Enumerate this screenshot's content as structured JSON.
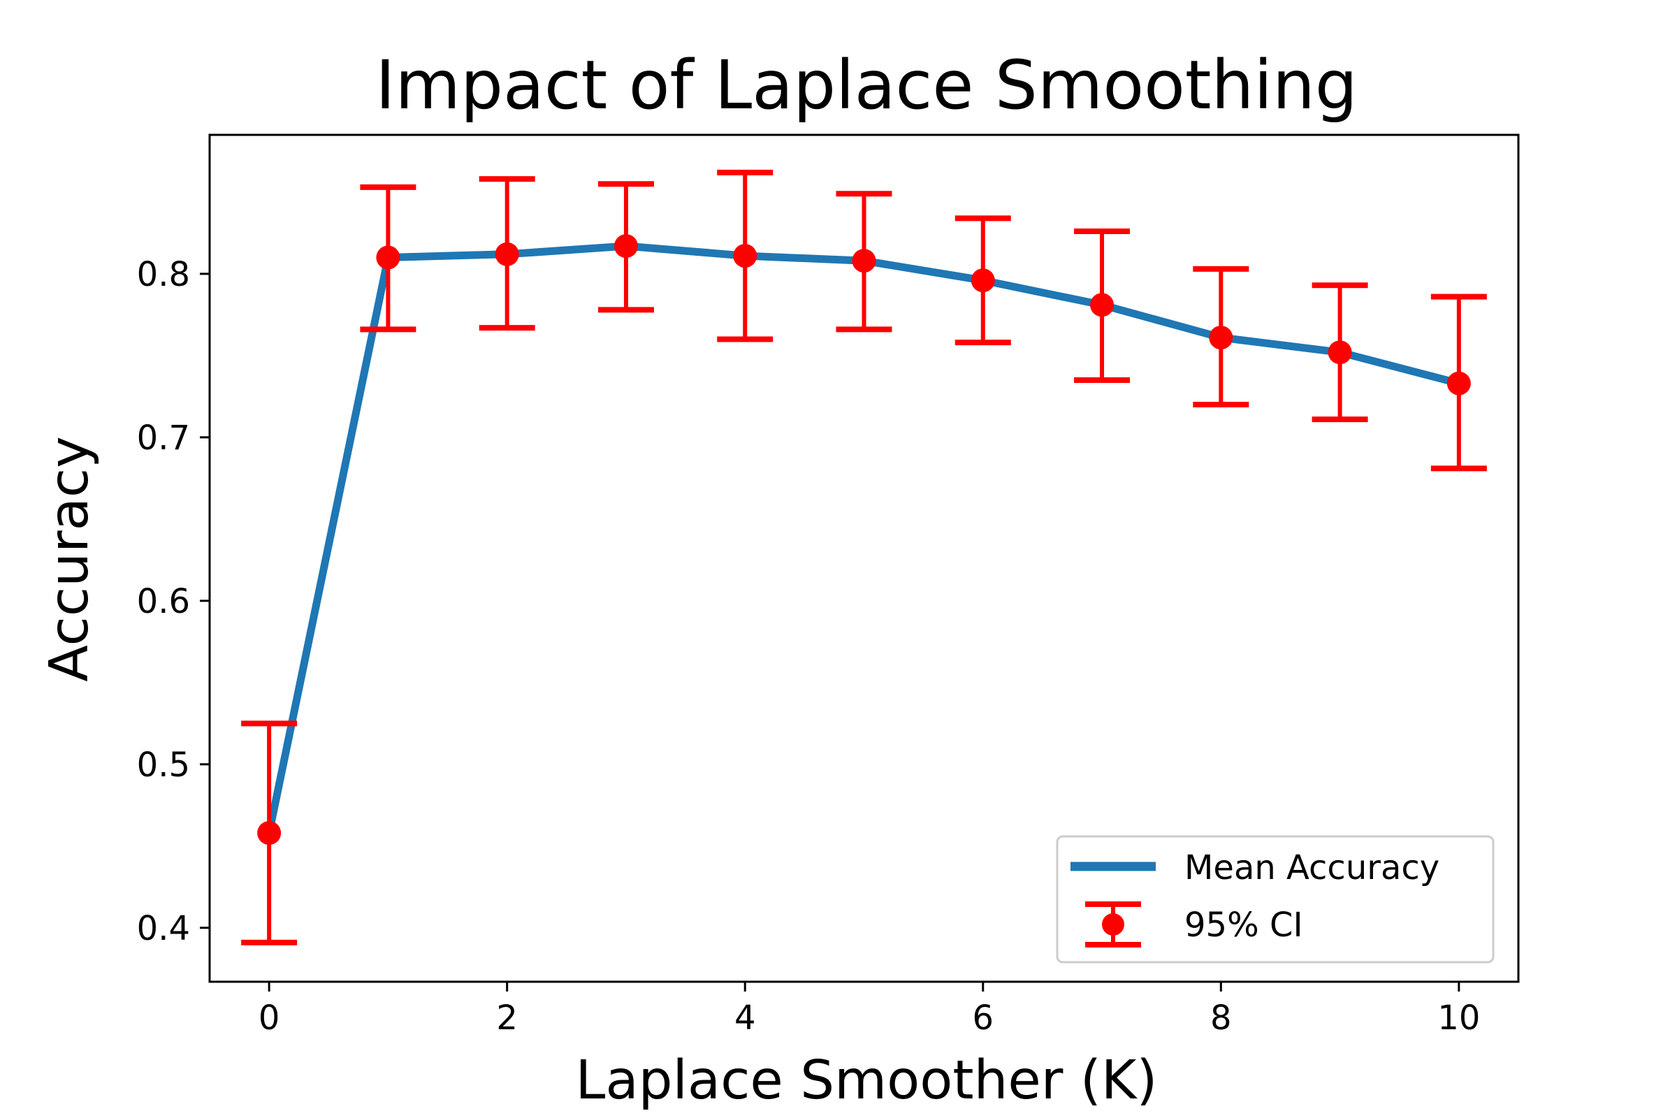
{
  "chart_data": {
    "type": "line",
    "title": "Impact of Laplace Smoothing",
    "xlabel": "Laplace Smoother (K)",
    "ylabel": "Accuracy",
    "xlim": [
      -0.5,
      10.5
    ],
    "ylim": [
      0.367,
      0.885
    ],
    "xticks": [
      0,
      2,
      4,
      6,
      8,
      10
    ],
    "yticks": [
      0.4,
      0.5,
      0.6,
      0.7,
      0.8
    ],
    "ytick_labels": [
      "0.4",
      "0.5",
      "0.6",
      "0.7",
      "0.8"
    ],
    "x": [
      0,
      1,
      2,
      3,
      4,
      5,
      6,
      7,
      8,
      9,
      10
    ],
    "series": [
      {
        "name": "Mean Accuracy",
        "kind": "line",
        "color": "#1f77b4",
        "values": [
          0.458,
          0.81,
          0.812,
          0.817,
          0.811,
          0.808,
          0.796,
          0.781,
          0.761,
          0.752,
          0.733
        ]
      },
      {
        "name": "95% CI",
        "kind": "errorbar",
        "color": "#ff0000",
        "values": [
          0.458,
          0.81,
          0.812,
          0.817,
          0.811,
          0.808,
          0.796,
          0.781,
          0.761,
          0.752,
          0.733
        ],
        "lower": [
          0.391,
          0.766,
          0.767,
          0.778,
          0.76,
          0.766,
          0.758,
          0.735,
          0.72,
          0.711,
          0.681
        ],
        "upper": [
          0.525,
          0.853,
          0.858,
          0.855,
          0.862,
          0.849,
          0.834,
          0.826,
          0.803,
          0.793,
          0.786
        ]
      }
    ],
    "grid": false,
    "legend": {
      "placement": "lower-right",
      "entries": [
        "Mean Accuracy",
        "95% CI"
      ]
    }
  }
}
